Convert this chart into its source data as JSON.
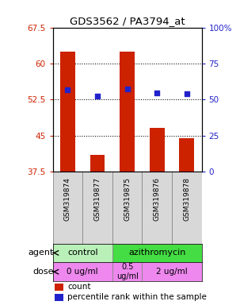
{
  "title": "GDS3562 / PA3794_at",
  "samples": [
    "GSM319874",
    "GSM319877",
    "GSM319875",
    "GSM319876",
    "GSM319878"
  ],
  "bar_values": [
    62.5,
    41.0,
    62.5,
    46.5,
    44.5
  ],
  "dot_values": [
    57.0,
    52.5,
    57.5,
    54.5,
    54.0
  ],
  "bar_color": "#cc2200",
  "dot_color": "#2222cc",
  "left_ylim": [
    37.5,
    67.5
  ],
  "right_ylim": [
    0,
    100
  ],
  "left_yticks": [
    37.5,
    45.0,
    52.5,
    60.0,
    67.5
  ],
  "left_yticklabels": [
    "37.5",
    "45",
    "52.5",
    "60",
    "67.5"
  ],
  "right_yticks": [
    0,
    25,
    50,
    75,
    100
  ],
  "right_yticklabels": [
    "0",
    "25",
    "50",
    "75",
    "100%"
  ],
  "hlines": [
    60.0,
    52.5,
    45.0
  ],
  "control_color": "#b8f0b8",
  "azithromycin_color": "#44dd44",
  "dose_color": "#ee88ee",
  "left_tick_color": "#cc2200",
  "right_tick_color": "#2222cc",
  "legend_count_color": "#cc2200",
  "legend_dot_color": "#2222cc",
  "bar_bottom": 37.5
}
